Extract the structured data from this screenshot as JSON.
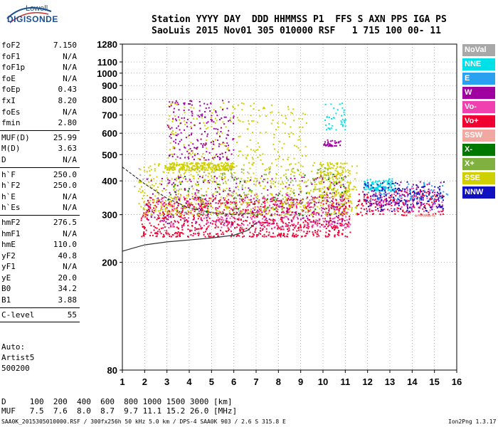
{
  "logo": {
    "line1": "Lowell",
    "line2": "DIGISONDE"
  },
  "header": {
    "line1": "Station YYYY DAY  DDD HHMMSS P1  FFS S AXN PPS IGA PS",
    "line2": "SaoLuis 2015 Nov01 305 010000 RSF   1 715 100 00- 11"
  },
  "params_a": [
    {
      "label": "foF2",
      "value": "7.150"
    },
    {
      "label": "foF1",
      "value": "N/A"
    },
    {
      "label": "foF1p",
      "value": "N/A"
    },
    {
      "label": "foE",
      "value": "N/A"
    },
    {
      "label": "foEp",
      "value": "0.43"
    },
    {
      "label": "fxI",
      "value": "8.20"
    },
    {
      "label": "foEs",
      "value": "N/A"
    },
    {
      "label": "fmin",
      "value": "2.80"
    }
  ],
  "params_b": [
    {
      "label": "MUF(D)",
      "value": "25.99"
    },
    {
      "label": "M(D)",
      "value": "3.63"
    },
    {
      "label": "D",
      "value": "N/A"
    }
  ],
  "params_c": [
    {
      "label": "h`F",
      "value": "250.0"
    },
    {
      "label": "h`F2",
      "value": "250.0"
    },
    {
      "label": "h`E",
      "value": "N/A"
    },
    {
      "label": "h`Es",
      "value": "N/A"
    }
  ],
  "params_d": [
    {
      "label": "hmF2",
      "value": "276.5"
    },
    {
      "label": "hmF1",
      "value": "N/A"
    },
    {
      "label": "hmE",
      "value": "110.0"
    },
    {
      "label": "yF2",
      "value": "40.8"
    },
    {
      "label": "yF1",
      "value": "N/A"
    },
    {
      "label": "yE",
      "value": "20.0"
    },
    {
      "label": "B0",
      "value": "34.2"
    },
    {
      "label": "B1",
      "value": "3.88"
    }
  ],
  "params_e": [
    {
      "label": "C-level",
      "value": "55"
    }
  ],
  "auto": {
    "line1": "Auto:",
    "line2": "Artist5",
    "line3": "500200"
  },
  "legend": [
    {
      "label": "NoVal",
      "color": "#a8a8a8"
    },
    {
      "label": "NNE",
      "color": "#00e0e8"
    },
    {
      "label": "E",
      "color": "#2aa0f0"
    },
    {
      "label": "W",
      "color": "#a000a0"
    },
    {
      "label": "Vo-",
      "color": "#f040b0"
    },
    {
      "label": "Vo+",
      "color": "#f00030"
    },
    {
      "label": "SSW",
      "color": "#f0a8a0"
    },
    {
      "label": "X-",
      "color": "#007800"
    },
    {
      "label": "X+",
      "color": "#80b040"
    },
    {
      "label": "SSE",
      "color": "#d0d000"
    },
    {
      "label": "NNW",
      "color": "#1010c0"
    }
  ],
  "footer": {
    "line1": "D     100  200  400  600  800 1000 1500 3000 [km]",
    "line2": "MUF   7.5  7.6  8.0  8.7  9.7 11.1 15.2 26.0 [MHz]"
  },
  "bottom_line": "SAA0K_2015305010000.RSF / 300fx256h 50 kHz 5.0 km / DPS-4 SAA0K 903 / 2.6 S 315.8 E",
  "version": "Ion2Png 1.3.17",
  "chart_data": {
    "type": "scatter",
    "title": "",
    "xlabel": "",
    "ylabel": "",
    "xlim": [
      1,
      16
    ],
    "x_ticks": [
      1,
      2,
      3,
      4,
      5,
      6,
      7,
      8,
      9,
      10,
      11,
      12,
      13,
      14,
      15,
      16
    ],
    "y_scale": "log",
    "ylim": [
      80,
      1280
    ],
    "y_ticks": [
      80,
      200,
      300,
      400,
      500,
      600,
      700,
      800,
      900,
      1000,
      1100,
      1280
    ],
    "grid": true,
    "series": [
      {
        "name": "Vo+",
        "color": "#f00030",
        "clusters": [
          {
            "x": [
              1.8,
              11.2
            ],
            "y": [
              250,
              350
            ],
            "n": 900
          },
          {
            "x": [
              11.5,
              15.4
            ],
            "y": [
              300,
              370
            ],
            "n": 180
          }
        ]
      },
      {
        "name": "Vo-",
        "color": "#f040b0",
        "clusters": [
          {
            "x": [
              2.5,
              11.2
            ],
            "y": [
              270,
              360
            ],
            "n": 320
          },
          {
            "x": [
              12.0,
              15.4
            ],
            "y": [
              310,
              380
            ],
            "n": 90
          }
        ]
      },
      {
        "name": "SSE",
        "color": "#d0d000",
        "clusters": [
          {
            "x": [
              1.7,
              11.5
            ],
            "y": [
              300,
              470
            ],
            "n": 700
          },
          {
            "x": [
              3.0,
              6.0
            ],
            "y": [
              440,
              470
            ],
            "n": 250
          },
          {
            "x": [
              3.0,
              9.3
            ],
            "y": [
              480,
              780
            ],
            "n": 220
          },
          {
            "x": [
              9.8,
              11.2
            ],
            "y": [
              350,
              470
            ],
            "n": 160
          }
        ]
      },
      {
        "name": "W",
        "color": "#a000a0",
        "clusters": [
          {
            "x": [
              2.0,
              11.2
            ],
            "y": [
              280,
              420
            ],
            "n": 260
          },
          {
            "x": [
              3.0,
              6.0
            ],
            "y": [
              480,
              800
            ],
            "n": 200
          },
          {
            "x": [
              10.0,
              10.8
            ],
            "y": [
              540,
              570
            ],
            "n": 40
          },
          {
            "x": [
              12.0,
              15.4
            ],
            "y": [
              320,
              400
            ],
            "n": 90
          }
        ]
      },
      {
        "name": "NNE",
        "color": "#00e0e8",
        "clusters": [
          {
            "x": [
              11.8,
              13.2
            ],
            "y": [
              370,
              410
            ],
            "n": 110
          },
          {
            "x": [
              10.0,
              11.0
            ],
            "y": [
              620,
              780
            ],
            "n": 40
          }
        ]
      },
      {
        "name": "E",
        "color": "#2aa0f0",
        "clusters": [
          {
            "x": [
              12.0,
              15.6
            ],
            "y": [
              340,
              400
            ],
            "n": 70
          }
        ]
      },
      {
        "name": "NNW",
        "color": "#1010c0",
        "clusters": [
          {
            "x": [
              11.8,
              15.4
            ],
            "y": [
              310,
              400
            ],
            "n": 150
          }
        ]
      },
      {
        "name": "X+",
        "color": "#80b040",
        "clusters": [
          {
            "x": [
              4.0,
              11.0
            ],
            "y": [
              300,
              450
            ],
            "n": 120
          }
        ]
      },
      {
        "name": "X-",
        "color": "#007800",
        "clusters": [
          {
            "x": [
              3.0,
              11.0
            ],
            "y": [
              300,
              430
            ],
            "n": 60
          }
        ]
      },
      {
        "name": "NoVal",
        "color": "#a8a8a8",
        "clusters": [
          {
            "x": [
              1.5,
              11.0
            ],
            "y": [
              250,
              450
            ],
            "n": 80
          }
        ]
      },
      {
        "name": "SSW",
        "color": "#f0a8a0",
        "clusters": [
          {
            "x": [
              14.0,
              15.0
            ],
            "y": [
              298,
              302
            ],
            "n": 30
          }
        ]
      }
    ],
    "curves": [
      {
        "name": "trace-lower",
        "color": "#333333",
        "x": [
          1.0,
          2.0,
          3.0,
          4.0,
          5.0,
          6.0,
          6.6,
          7.0
        ],
        "y": [
          220,
          232,
          238,
          242,
          246,
          252,
          262,
          280
        ]
      },
      {
        "name": "trace-upper",
        "color": "#333333",
        "x": [
          1.0,
          2.0,
          3.0,
          4.0,
          5.0,
          6.0,
          7.0
        ],
        "y": [
          450,
          390,
          345,
          318,
          305,
          300,
          305
        ]
      }
    ]
  }
}
